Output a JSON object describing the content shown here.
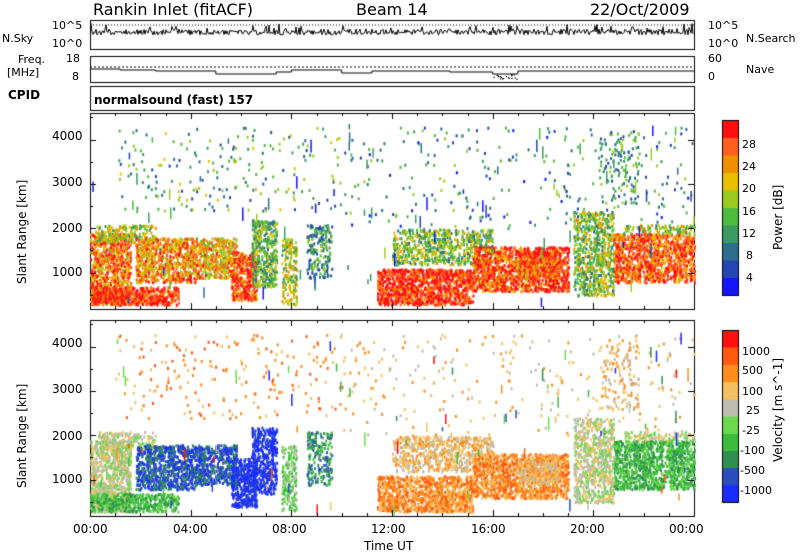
{
  "header": {
    "station": "Rankin Inlet (fitACF)",
    "beam": "Beam 14",
    "date": "22/Oct/2009"
  },
  "noise_panel": {
    "left_label": "N.Sky",
    "right_label": "N.Search",
    "left_ticks": [
      "10^5",
      "10^0"
    ],
    "right_ticks": [
      "10^5",
      "10^0"
    ]
  },
  "freq_panel": {
    "left_label_line1": "Freq.",
    "left_label_line2": "[MHz]",
    "right_label": "Nave",
    "left_ticks": [
      "18",
      "8"
    ],
    "right_ticks": [
      "60",
      "0"
    ]
  },
  "cpid_panel": {
    "label": "CPID",
    "mode_text": "normalsound (fast) 157"
  },
  "time_axis": {
    "label": "Time UT",
    "ticks": [
      "00:00",
      "04:00",
      "08:00",
      "12:00",
      "16:00",
      "20:00",
      "00:00"
    ]
  },
  "chart_data": [
    {
      "type": "heatmap",
      "title": "",
      "xlabel": "Time UT",
      "ylabel": "Slant Range [km]",
      "x_ticks": [
        "00:00",
        "04:00",
        "08:00",
        "12:00",
        "16:00",
        "20:00",
        "00:00"
      ],
      "y_ticks": [
        1000,
        2000,
        3000,
        4000
      ],
      "ylim": [
        180,
        4600
      ],
      "colorbar": {
        "label": "Power [dB]",
        "ticks": [
          "28",
          "24",
          "20",
          "16",
          "12",
          "8",
          "4"
        ],
        "colors": [
          "#1515ff",
          "#2246b4",
          "#2c6e8c",
          "#3a9c60",
          "#4ebc3c",
          "#9acc20",
          "#e8c000",
          "#f09000",
          "#ff6020",
          "#ff1010"
        ]
      },
      "notes": "Backscatter power vs time and slant range"
    },
    {
      "type": "heatmap",
      "title": "",
      "xlabel": "Time UT",
      "ylabel": "Slant Range [km]",
      "x_ticks": [
        "00:00",
        "04:00",
        "08:00",
        "12:00",
        "16:00",
        "20:00",
        "00:00"
      ],
      "y_ticks": [
        1000,
        2000,
        3000,
        4000
      ],
      "ylim": [
        180,
        4600
      ],
      "colorbar": {
        "label": "Velocity [m s^-1]",
        "ticks": [
          "1000",
          "500",
          "100",
          "25",
          "-25",
          "-100",
          "-500",
          "-1000"
        ],
        "colors": [
          "#1a2cff",
          "#2a4ec0",
          "#2f8f50",
          "#3cbc3c",
          "#6cd84c",
          "#bdbdb0",
          "#f4c060",
          "#ff8c1c",
          "#ff5a10",
          "#ff1010"
        ]
      },
      "notes": "Line-of-sight Doppler velocity vs time and slant range"
    }
  ]
}
